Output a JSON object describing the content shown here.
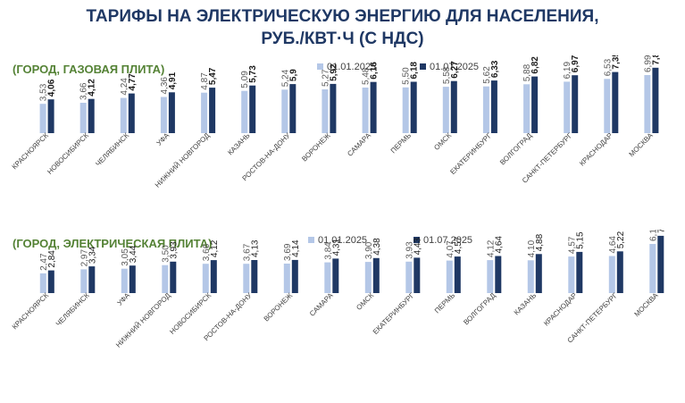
{
  "title_lines": [
    "ТАРИФЫ НА ЭЛЕКТРИЧЕСКУЮ ЭНЕРГИЮ ДЛЯ НАСЕЛЕНИЯ,",
    "РУБ./КВТ·Ч (С НДС)"
  ],
  "colors": {
    "title": "#1f3864",
    "subtitle": "#548235",
    "series_a": "#b4c7e7",
    "series_b": "#1f3864"
  },
  "chart_data": [
    {
      "type": "bar",
      "title": "(ГОРОД, ГАЗОВАЯ ПЛИТА)",
      "categories": [
        "КРАСНОЯРСК",
        "НОВОСИБИРСК",
        "ЧЕЛЯБИНСК",
        "УФА",
        "НИЖНИЙ НОВГОРОД",
        "КАЗАНЬ",
        "РОСТОВ-НА-ДОНУ",
        "ВОРОНЕЖ",
        "САМАРА",
        "ПЕРМЬ",
        "ОМСК",
        "ЕКАТЕРИНБУРГ",
        "ВОЛГОГРАД",
        "САНКТ-ПЕТЕРБУРГ",
        "КРАСНОДАР",
        "МОСКВА"
      ],
      "series": [
        {
          "name": "01.01.2025",
          "values": [
            3.53,
            3.66,
            4.24,
            4.36,
            4.87,
            5.09,
            5.24,
            5.27,
            5.48,
            5.5,
            5.58,
            5.62,
            5.88,
            6.19,
            6.53,
            6.99
          ],
          "labels": [
            "3,53",
            "3,66",
            "4,24",
            "4,36",
            "4,87",
            "5,09",
            "5,24",
            "5,27",
            "5,48",
            "5,50",
            "5,58",
            "5,62",
            "5,88",
            "6,19",
            "6,53",
            "6,99"
          ]
        },
        {
          "name": "01.07.2025",
          "values": [
            4.06,
            4.12,
            4.77,
            4.91,
            5.47,
            5.73,
            5.9,
            5.92,
            6.16,
            6.18,
            6.27,
            6.33,
            6.82,
            6.97,
            7.35,
            7.87
          ],
          "labels": [
            "4,06",
            "4,12",
            "4,77",
            "4,91",
            "5,47",
            "5,73",
            "5,9",
            "5,92",
            "6,16",
            "6,18",
            "6,27",
            "6,33",
            "6,82",
            "6,97",
            "7,35",
            "7,87"
          ]
        }
      ],
      "ylim": [
        0,
        8
      ],
      "legend": "top-right",
      "grid": false
    },
    {
      "type": "bar",
      "title": "(ГОРОД, ЭЛЕКТРИЧЕСКАЯ ПЛИТА)",
      "categories": [
        "КРАСНОЯРСК",
        "ЧЕЛЯБИНСК",
        "УФА",
        "НИЖНИЙ НОВГОРОД",
        "НОВОСИБИРСК",
        "РОСТОВ-НА-ДОНУ",
        "ВОРОНЕЖ",
        "САМАРА",
        "ОМСК",
        "ЕКАТЕРИНБУРГ",
        "ПЕРМЬ",
        "ВОЛГОГРАД",
        "КАЗАНЬ",
        "КРАСНОДАР",
        "САНКТ-ПЕТЕРБУРГ",
        "МОСКВА"
      ],
      "series": [
        {
          "name": "01.01.2025",
          "values": [
            2.47,
            2.97,
            3.05,
            3.5,
            3.66,
            3.67,
            3.69,
            3.84,
            3.9,
            3.93,
            4.07,
            4.12,
            4.1,
            4.57,
            4.64,
            6.15
          ],
          "labels": [
            "2,47",
            "2,97",
            "3,05",
            "3,50",
            "3,66",
            "3,67",
            "3,69",
            "3,84",
            "3,90",
            "3,93",
            "4,07",
            "4,12",
            "4,10",
            "4,57",
            "4,64",
            "6,15"
          ]
        },
        {
          "name": "01.07.2025",
          "values": [
            2.84,
            3.34,
            3.44,
            3.93,
            4.12,
            4.13,
            4.14,
            4.31,
            4.38,
            4.43,
            4.57,
            4.64,
            4.88,
            5.15,
            5.22,
            7.16
          ],
          "labels": [
            "2,84",
            "3,34",
            "3,44",
            "3,93",
            "4,12",
            "4,13",
            "4,14",
            "4,31",
            "4,38",
            "4,43",
            "4,57",
            "4,64",
            "4,88",
            "5,15",
            "5,22",
            "7,16"
          ]
        }
      ],
      "ylim": [
        0,
        7.5
      ],
      "legend": "top-right",
      "grid": false
    }
  ]
}
